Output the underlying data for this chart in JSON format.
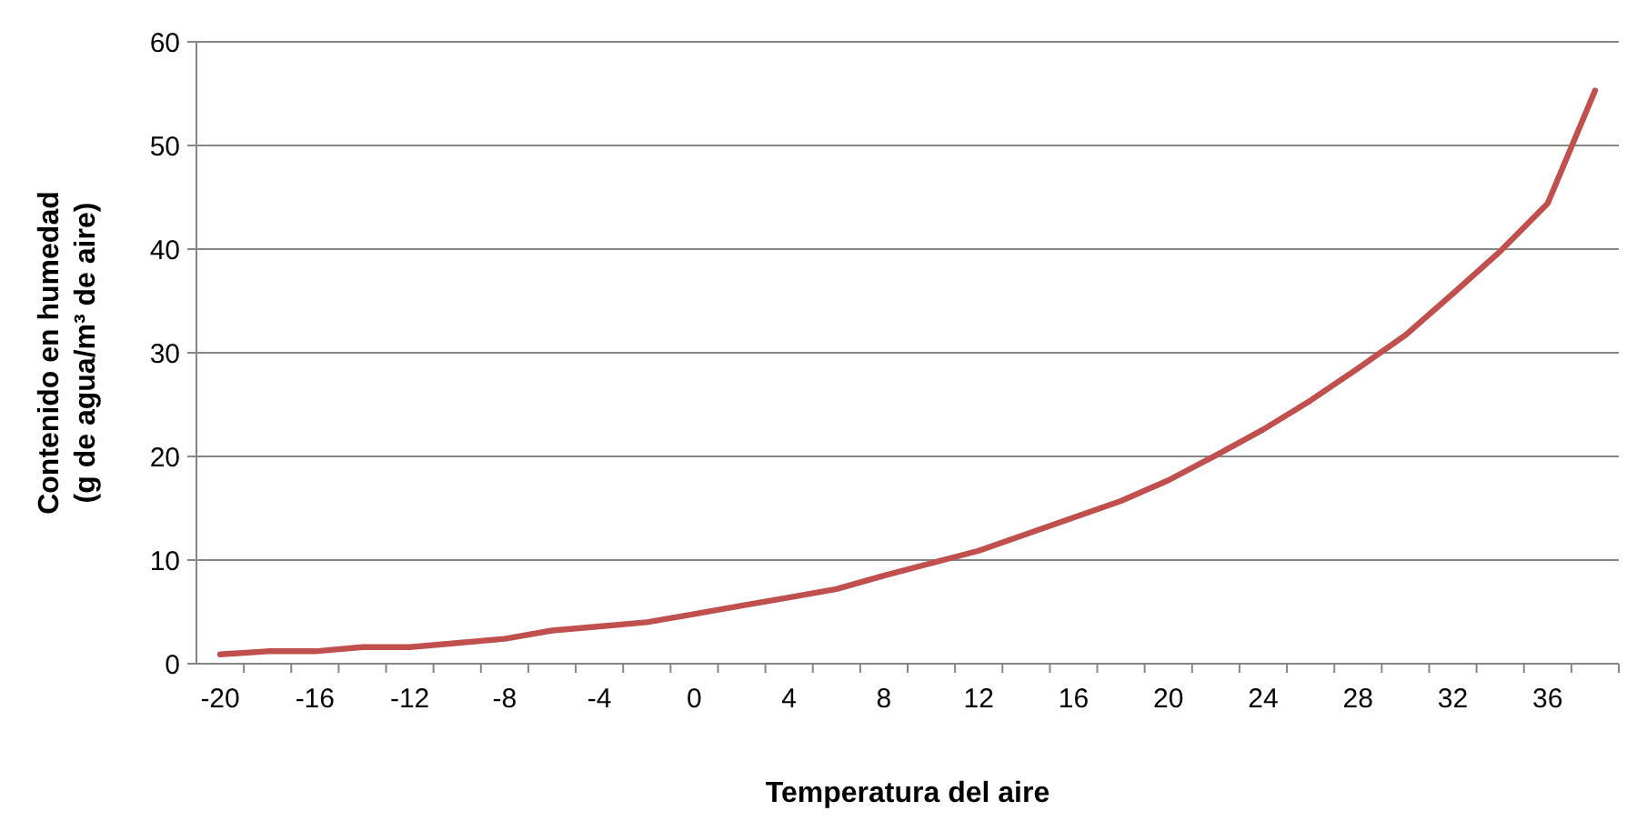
{
  "chart_data": {
    "type": "line",
    "xlabel": "Temperatura del aire",
    "ylabel": "Contenido en humedad\n(g de agua/m³ de aire)",
    "categories": [
      "-20",
      null,
      "-16",
      null,
      "-12",
      null,
      "-8",
      null,
      "-4",
      null,
      "0",
      null,
      "4",
      null,
      "8",
      null,
      "12",
      null,
      "16",
      null,
      "20",
      null,
      "24",
      null,
      "28",
      null,
      "32",
      null,
      "36",
      null
    ],
    "series": [
      {
        "color": "#c0504d",
        "values": [
          0.9,
          1.2,
          1.2,
          1.6,
          1.6,
          2.0,
          2.4,
          3.2,
          3.6,
          4.0,
          4.8,
          5.6,
          6.4,
          7.2,
          8.5,
          9.7,
          10.9,
          12.5,
          14.1,
          15.7,
          17.7,
          20.1,
          22.6,
          25.4,
          28.5,
          31.7,
          35.7,
          39.8,
          44.4,
          55.3
        ]
      }
    ],
    "ylim": [
      0,
      60
    ],
    "yticks": [
      0,
      10,
      20,
      30,
      40,
      50,
      60
    ],
    "grid": "y",
    "marker": "none",
    "line_style": "solid"
  }
}
